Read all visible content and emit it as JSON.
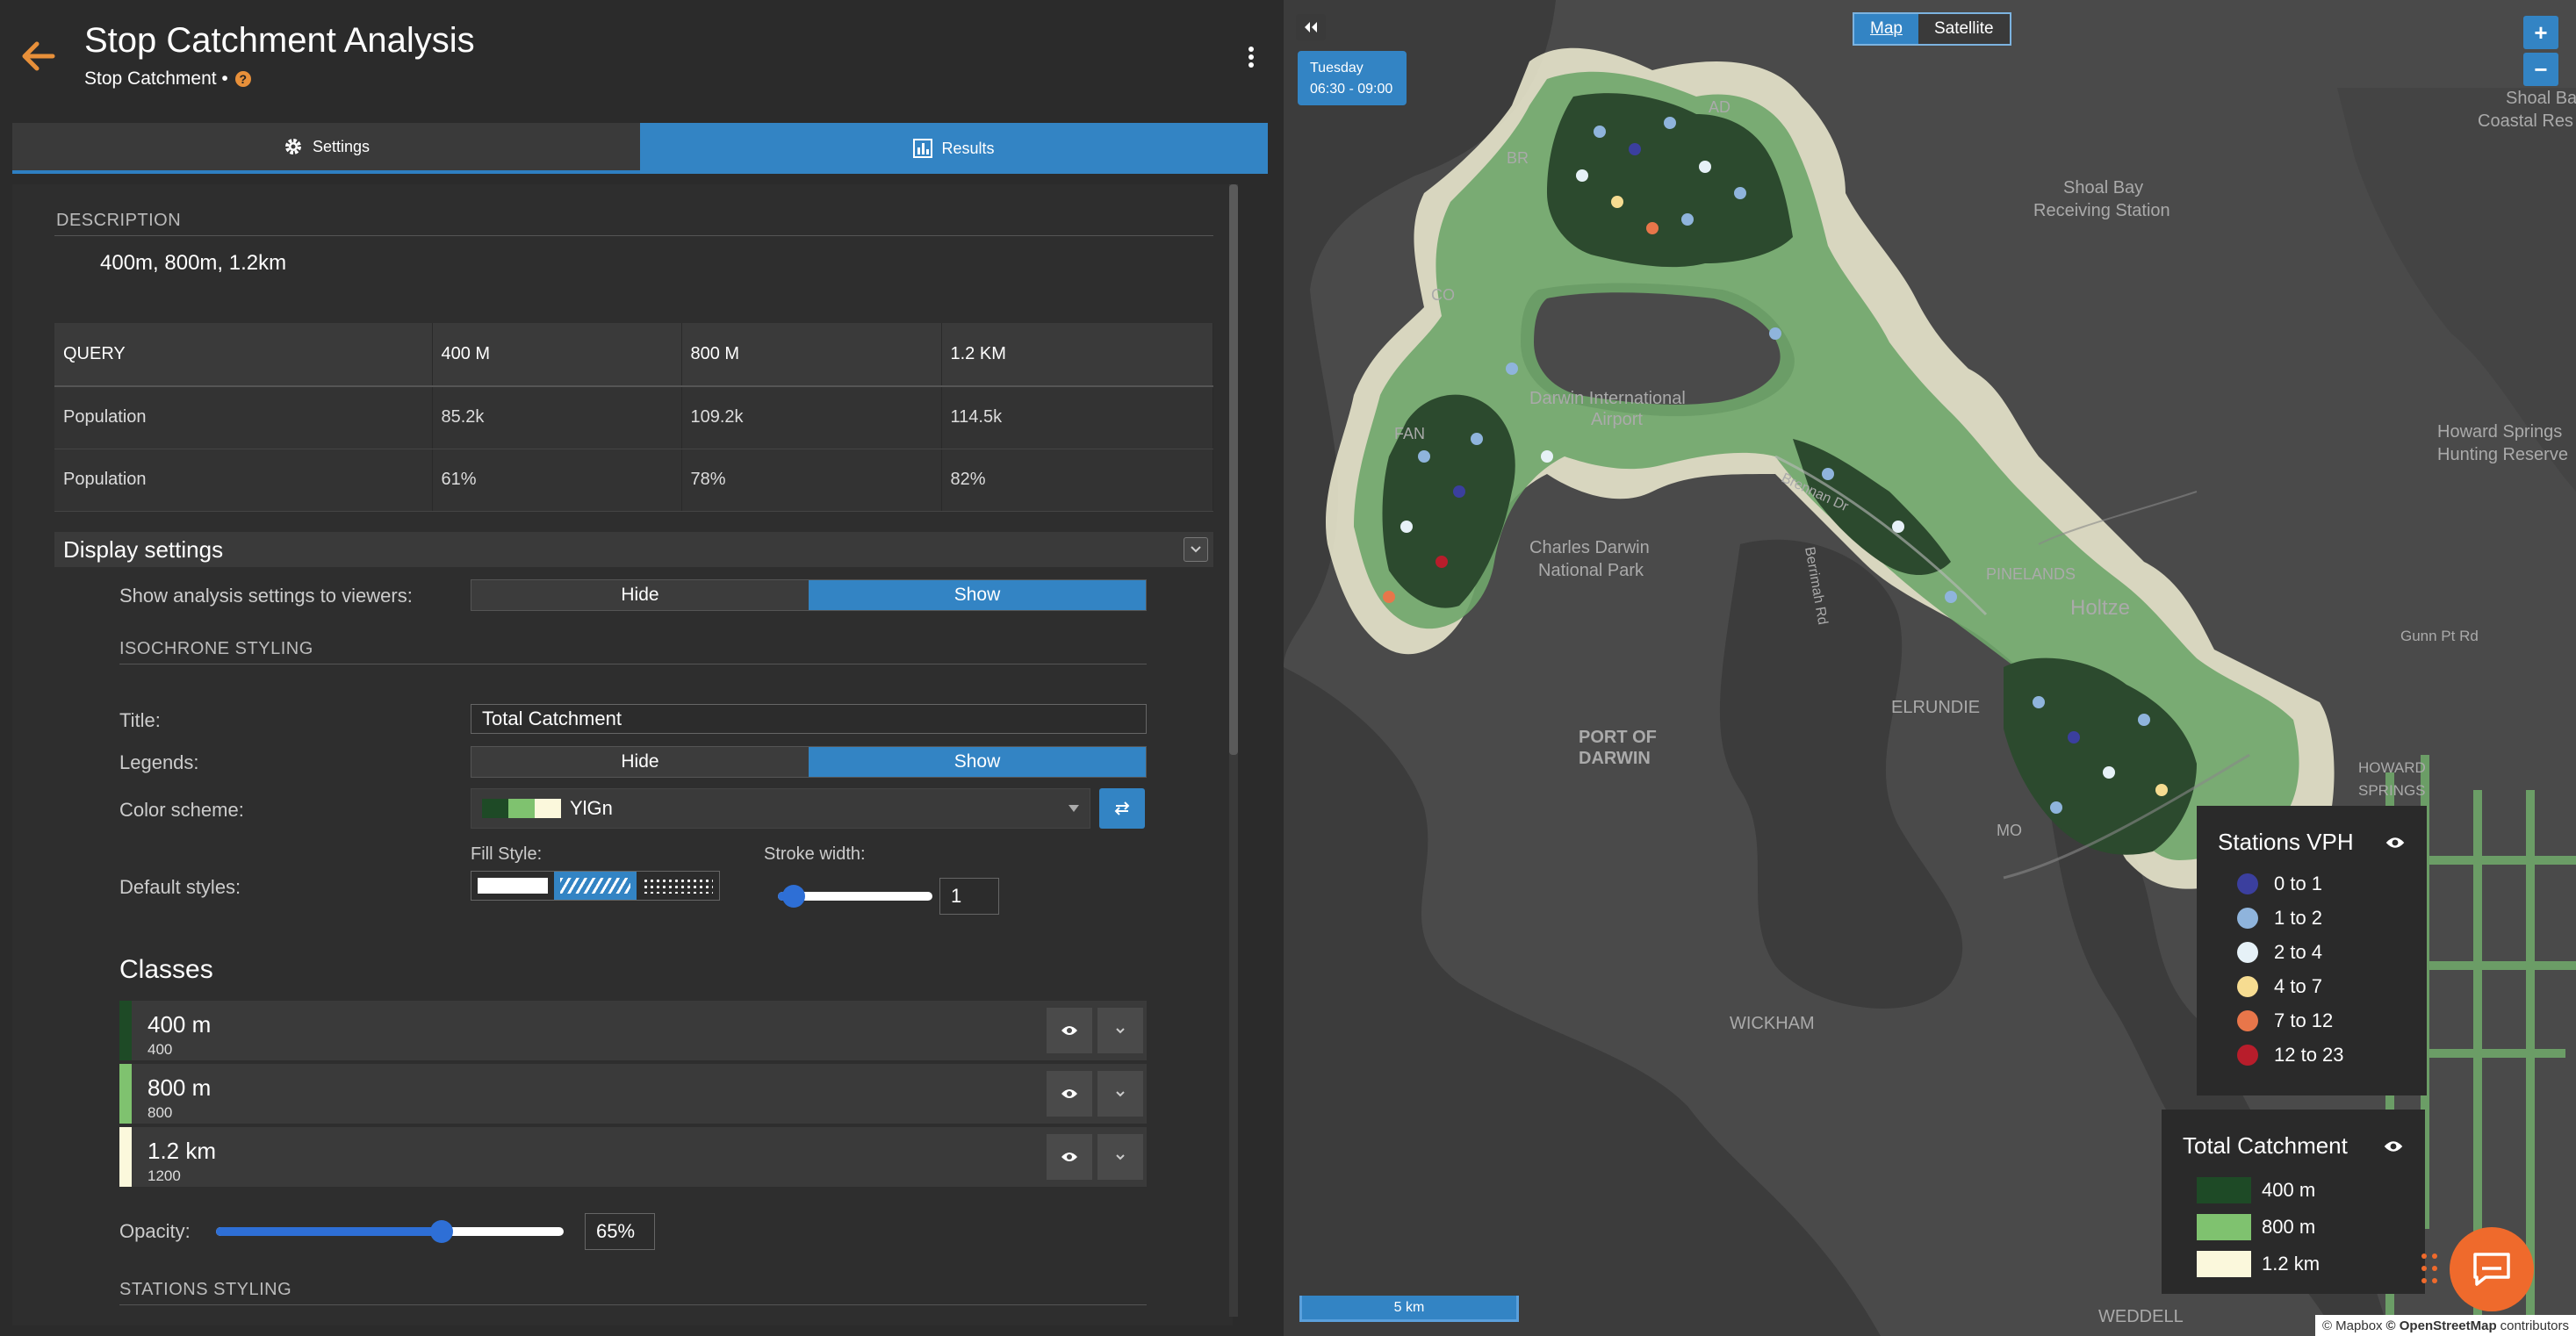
{
  "header": {
    "title": "Stop Catchment Analysis",
    "subtitle": "Stop Catchment •",
    "help": "?"
  },
  "tabs": [
    {
      "label": "Settings"
    },
    {
      "label": "Results"
    }
  ],
  "description": {
    "label": "DESCRIPTION",
    "value": "400m, 800m, 1.2km"
  },
  "table": {
    "headers": [
      "QUERY",
      "400 M",
      "800 M",
      "1.2 KM"
    ],
    "rows": [
      [
        "Population",
        "85.2k",
        "109.2k",
        "114.5k"
      ],
      [
        "Population",
        "61%",
        "78%",
        "82%"
      ]
    ]
  },
  "display": {
    "title": "Display settings",
    "show_settings_label": "Show analysis settings to viewers:",
    "hide": "Hide",
    "show": "Show",
    "isochrone_label": "ISOCHRONE STYLING",
    "title_label": "Title:",
    "title_value": "Total Catchment",
    "legends_label": "Legends:",
    "color_scheme_label": "Color scheme:",
    "color_scheme_value": "YlGn",
    "default_styles_label": "Default styles:",
    "fill_style_label": "Fill Style:",
    "stroke_width_label": "Stroke width:",
    "stroke_width_value": "1",
    "stroke_width_level": 0.1,
    "classes_title": "Classes",
    "classes": [
      {
        "name": "400 m",
        "value": "400",
        "color": "#1e4a26"
      },
      {
        "name": "800 m",
        "value": "800",
        "color": "#7fc26f"
      },
      {
        "name": "1.2 km",
        "value": "1200",
        "color": "#fbf8dc"
      }
    ],
    "opacity_label": "Opacity:",
    "opacity_value": "65%",
    "opacity_level": 0.65,
    "stations_label": "STATIONS STYLING"
  },
  "map": {
    "time_day": "Tuesday",
    "time_range": "06:30 - 09:00",
    "map_type": [
      "Map",
      "Satellite"
    ],
    "zoom_in": "+",
    "zoom_out": "−",
    "labels": [
      "Darwin International",
      "Airport",
      "Charles Darwin",
      "National Park",
      "PORT OF",
      "DARWIN",
      "Holtze",
      "ELRUNDIE",
      "WICKHAM",
      "Shoal Bay",
      "Receiving Station",
      "Howard Springs",
      "Hunting Reserve",
      "Gunn Pt Rd",
      "Brennan Dr",
      "Berrimah Rd",
      "PINELANDS",
      "FAN",
      "CO",
      "BR",
      "AD",
      "HOWARD",
      "SPRINGS",
      "MO",
      "WEDDELL",
      "Shoal Ba",
      "Coastal Res"
    ],
    "scale": "5 km",
    "attribution": [
      "© Mapbox",
      "© OpenStreetMap",
      "contributors"
    ]
  },
  "legend_vph": {
    "title": "Stations VPH",
    "items": [
      {
        "label": "0 to 1",
        "color": "#3b3f9e"
      },
      {
        "label": "1 to 2",
        "color": "#8fb4dc"
      },
      {
        "label": "2 to 4",
        "color": "#e6f1f7"
      },
      {
        "label": "4 to 7",
        "color": "#f6dc91"
      },
      {
        "label": "7 to 12",
        "color": "#e8764a"
      },
      {
        "label": "12 to 23",
        "color": "#b81d2b"
      }
    ]
  },
  "legend_tc": {
    "title": "Total Catchment",
    "items": [
      {
        "label": "400 m",
        "color": "#1e4a26"
      },
      {
        "label": "800 m",
        "color": "#7fc26f"
      },
      {
        "label": "1.2 km",
        "color": "#fbf8dc"
      }
    ]
  },
  "colors": {
    "accent": "#3384c4",
    "orange": "#e8903a"
  }
}
